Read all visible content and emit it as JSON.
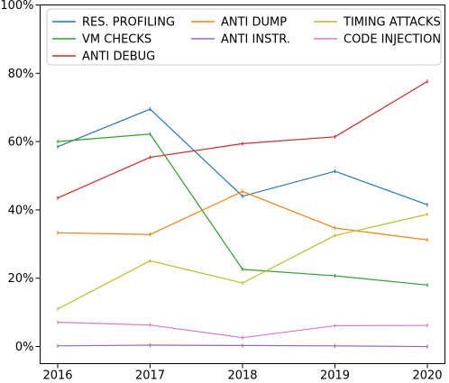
{
  "chart_data": {
    "type": "line",
    "x": [
      "2016",
      "2017",
      "2018",
      "2019",
      "2020"
    ],
    "ylim": [
      -5,
      100
    ],
    "yticks": [
      0,
      20,
      40,
      60,
      80,
      100
    ],
    "ytick_labels": [
      "0%",
      "20%",
      "40%",
      "60%",
      "80%",
      "100%"
    ],
    "xtick_labels": [
      "2016",
      "2017",
      "2018",
      "2019",
      "2020"
    ],
    "grid": false,
    "legend_position": "top",
    "series": [
      {
        "name": "RES. PROFILING",
        "color": "#1f77b4",
        "values": [
          58.5,
          69.5,
          44.0,
          51.3,
          41.5
        ]
      },
      {
        "name": "VM CHECKS",
        "color": "#2ca02c",
        "values": [
          60.0,
          62.2,
          22.6,
          20.7,
          18.0
        ]
      },
      {
        "name": "ANTI DEBUG",
        "color": "#d62728",
        "values": [
          43.5,
          55.4,
          59.4,
          61.4,
          77.6
        ]
      },
      {
        "name": "ANTI DUMP",
        "color": "#ff7f0e",
        "values": [
          33.3,
          32.8,
          45.4,
          34.7,
          31.2
        ]
      },
      {
        "name": "ANTI INSTR.",
        "color": "#9467bd",
        "values": [
          0.2,
          0.4,
          0.3,
          0.2,
          0.0
        ]
      },
      {
        "name": "TIMING ATTACKS",
        "color": "#bcbd22",
        "values": [
          11.0,
          25.1,
          18.6,
          32.5,
          38.7
        ]
      },
      {
        "name": "CODE INJECTION",
        "color": "#e377c2",
        "values": [
          7.1,
          6.3,
          2.6,
          6.1,
          6.2
        ]
      }
    ]
  }
}
